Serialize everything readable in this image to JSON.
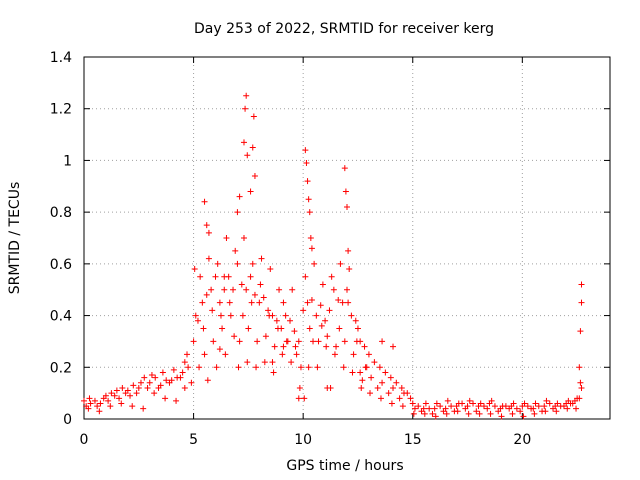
{
  "chart_data": {
    "type": "scatter",
    "title": "Day 253 of 2022, SRMTID for receiver kerg",
    "xlabel": "GPS time / hours",
    "ylabel": "SRMTID / TECUs",
    "xlim": [
      0,
      24
    ],
    "ylim": [
      0,
      1.4
    ],
    "x_ticks": [
      0,
      5,
      10,
      15,
      20
    ],
    "x_tick_labels": [
      "0",
      "5",
      "10",
      "15",
      "20"
    ],
    "y_ticks": [
      0,
      0.2,
      0.4,
      0.6,
      0.8,
      1.0,
      1.2,
      1.4
    ],
    "y_tick_labels": [
      "0",
      "0.2",
      "0.4",
      "0.6",
      "0.8",
      "1",
      "1.2",
      "1.4"
    ],
    "grid": true,
    "marker": "+",
    "marker_color": "#ff0000",
    "series": [
      {
        "name": "SRMTID",
        "x": [
          0.0,
          0.25,
          0.5,
          0.75,
          1.0,
          1.25,
          1.5,
          1.75,
          2.0,
          2.25,
          2.5,
          2.75,
          3.0,
          3.25,
          3.5,
          3.75,
          4.0,
          4.25,
          4.5,
          4.75,
          5.0,
          5.2,
          5.4,
          5.6,
          5.8,
          6.0,
          6.2,
          6.4,
          6.6,
          6.8,
          7.0,
          7.2,
          7.4,
          7.6,
          7.8,
          8.0,
          8.2,
          8.4,
          8.6,
          8.8,
          9.0,
          9.2,
          9.4,
          9.6,
          9.8,
          10.0,
          10.2,
          10.4,
          10.6,
          10.8,
          11.0,
          11.2,
          11.4,
          11.6,
          11.8,
          12.0,
          12.2,
          12.4,
          12.6,
          12.8,
          13.0,
          13.25,
          13.5,
          13.75,
          14.0,
          14.25,
          14.5,
          14.75,
          15.0,
          15.25,
          15.5,
          15.75,
          16.0,
          16.25,
          16.5,
          16.75,
          17.0,
          17.25,
          17.5,
          17.75,
          18.0,
          18.25,
          18.5,
          18.75,
          19.0,
          19.25,
          19.5,
          19.75,
          20.0,
          20.25,
          20.5,
          20.75,
          21.0,
          21.25,
          21.5,
          21.75,
          22.0,
          22.2,
          22.4,
          22.6,
          22.7,
          0.1,
          0.3,
          0.6,
          0.9,
          1.1,
          1.4,
          1.6,
          1.9,
          2.1,
          2.4,
          2.6,
          2.9,
          3.1,
          3.4,
          3.6,
          3.9,
          4.1,
          4.4,
          4.6,
          4.9,
          5.1,
          5.3,
          5.5,
          5.7,
          5.9,
          6.1,
          6.3,
          6.5,
          6.7,
          6.9,
          7.1,
          7.3,
          7.5,
          7.7,
          7.9,
          8.1,
          8.3,
          8.5,
          8.7,
          8.9,
          9.1,
          9.3,
          9.5,
          9.7,
          9.9,
          10.1,
          10.3,
          10.5,
          10.7,
          10.9,
          11.1,
          11.3,
          11.5,
          11.7,
          11.9,
          12.1,
          12.3,
          12.5,
          12.7,
          12.9,
          13.1,
          13.4,
          13.6,
          13.9,
          14.1,
          14.4,
          14.6,
          14.9,
          15.1,
          15.4,
          15.6,
          15.9,
          16.1,
          16.4,
          16.6,
          16.9,
          17.1,
          17.4,
          17.6,
          17.9,
          18.1,
          18.4,
          18.6,
          18.9,
          19.1,
          19.4,
          19.6,
          19.9,
          20.1,
          20.4,
          20.6,
          20.9,
          21.1,
          21.4,
          21.6,
          21.9,
          22.1,
          22.3,
          22.5,
          22.65,
          0.2,
          0.7,
          1.2,
          1.7,
          2.2,
          2.7,
          3.2,
          3.7,
          4.2,
          4.7,
          5.05,
          5.25,
          5.45,
          5.65,
          5.85,
          6.05,
          6.25,
          6.45,
          6.65,
          6.85,
          7.05,
          7.25,
          7.45,
          7.65,
          7.85,
          8.05,
          8.25,
          8.45,
          8.65,
          8.85,
          9.05,
          9.25,
          9.45,
          9.65,
          9.85,
          10.05,
          10.25,
          10.45,
          10.65,
          10.85,
          11.05,
          11.25,
          11.45,
          11.65,
          11.85,
          12.05,
          12.25,
          12.45,
          12.65,
          12.85,
          13.05,
          13.55,
          14.05,
          14.55,
          15.05,
          15.55,
          16.05,
          16.55,
          17.05,
          17.55,
          18.05,
          18.55,
          19.05,
          19.55,
          20.05,
          20.55,
          21.05,
          21.55,
          22.05,
          22.45,
          22.6,
          22.65,
          22.7,
          22.7,
          5.5,
          5.6,
          5.7,
          7.0,
          7.1,
          7.3,
          7.35,
          7.4,
          7.45,
          7.6,
          7.7,
          7.75,
          7.8,
          10.1,
          10.15,
          10.2,
          10.25,
          10.3,
          10.35,
          10.4,
          11.9,
          11.95,
          12.0,
          12.05,
          4.6,
          6.2,
          6.4,
          8.6,
          9.1,
          9.8,
          11.1,
          12.6,
          13.6,
          14.1
        ],
        "y": [
          0.07,
          0.08,
          0.07,
          0.06,
          0.09,
          0.1,
          0.11,
          0.12,
          0.11,
          0.13,
          0.12,
          0.16,
          0.14,
          0.16,
          0.13,
          0.15,
          0.15,
          0.16,
          0.18,
          0.2,
          0.3,
          0.38,
          0.45,
          0.48,
          0.5,
          0.55,
          0.45,
          0.5,
          0.55,
          0.5,
          0.6,
          0.52,
          0.5,
          0.55,
          0.48,
          0.45,
          0.47,
          0.42,
          0.4,
          0.38,
          0.35,
          0.4,
          0.38,
          0.34,
          0.3,
          0.42,
          0.45,
          0.46,
          0.4,
          0.44,
          0.38,
          0.42,
          0.5,
          0.46,
          0.45,
          0.5,
          0.4,
          0.38,
          0.3,
          0.28,
          0.25,
          0.22,
          0.2,
          0.18,
          0.16,
          0.14,
          0.12,
          0.1,
          0.06,
          0.05,
          0.04,
          0.04,
          0.04,
          0.05,
          0.04,
          0.05,
          0.05,
          0.06,
          0.05,
          0.06,
          0.05,
          0.05,
          0.06,
          0.05,
          0.04,
          0.05,
          0.05,
          0.04,
          0.05,
          0.05,
          0.04,
          0.05,
          0.05,
          0.06,
          0.05,
          0.05,
          0.06,
          0.06,
          0.07,
          0.08,
          0.12,
          0.05,
          0.06,
          0.05,
          0.08,
          0.07,
          0.09,
          0.08,
          0.1,
          0.09,
          0.1,
          0.14,
          0.12,
          0.17,
          0.12,
          0.18,
          0.14,
          0.19,
          0.16,
          0.22,
          0.14,
          0.4,
          0.55,
          0.25,
          0.62,
          0.3,
          0.6,
          0.35,
          0.7,
          0.4,
          0.65,
          0.3,
          0.7,
          0.35,
          0.6,
          0.3,
          0.62,
          0.32,
          0.58,
          0.28,
          0.5,
          0.45,
          0.3,
          0.5,
          0.25,
          0.2,
          0.55,
          0.35,
          0.6,
          0.3,
          0.52,
          0.32,
          0.55,
          0.28,
          0.6,
          0.3,
          0.58,
          0.25,
          0.35,
          0.15,
          0.2,
          0.16,
          0.12,
          0.14,
          0.1,
          0.12,
          0.08,
          0.1,
          0.08,
          0.04,
          0.03,
          0.06,
          0.02,
          0.06,
          0.03,
          0.07,
          0.03,
          0.06,
          0.04,
          0.07,
          0.03,
          0.06,
          0.04,
          0.07,
          0.03,
          0.05,
          0.04,
          0.06,
          0.03,
          0.06,
          0.04,
          0.06,
          0.03,
          0.07,
          0.04,
          0.06,
          0.05,
          0.07,
          0.06,
          0.08,
          0.14,
          0.04,
          0.03,
          0.05,
          0.06,
          0.05,
          0.04,
          0.1,
          0.08,
          0.07,
          0.25,
          0.58,
          0.2,
          0.35,
          0.15,
          0.42,
          0.2,
          0.4,
          0.25,
          0.45,
          0.32,
          0.2,
          0.4,
          0.22,
          0.45,
          0.2,
          0.52,
          0.22,
          0.4,
          0.18,
          0.35,
          0.25,
          0.3,
          0.22,
          0.28,
          0.12,
          0.08,
          0.2,
          0.3,
          0.2,
          0.36,
          0.28,
          0.12,
          0.25,
          0.35,
          0.2,
          0.45,
          0.18,
          0.3,
          0.12,
          0.2,
          0.1,
          0.08,
          0.06,
          0.05,
          0.02,
          0.02,
          0.01,
          0.02,
          0.03,
          0.02,
          0.02,
          0.02,
          0.01,
          0.02,
          0.01,
          0.02,
          0.03,
          0.03,
          0.04,
          0.04,
          0.2,
          0.34,
          0.45,
          0.52,
          0.84,
          0.75,
          0.72,
          0.8,
          0.86,
          1.07,
          1.2,
          1.25,
          1.02,
          0.88,
          1.05,
          1.17,
          0.94,
          1.04,
          0.99,
          0.92,
          0.85,
          0.8,
          0.7,
          0.66,
          0.97,
          0.88,
          0.82,
          0.65,
          0.12,
          0.27,
          0.55,
          0.22,
          0.28,
          0.08,
          0.12,
          0.18,
          0.3,
          0.28
        ]
      }
    ]
  }
}
